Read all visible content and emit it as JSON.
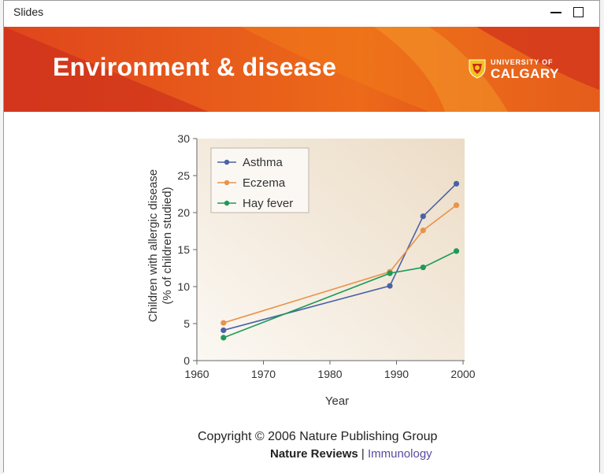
{
  "window": {
    "title": "Slides"
  },
  "slide": {
    "heading": "Environment & disease",
    "logo": {
      "top": "UNIVERSITY OF",
      "bottom": "CALGARY"
    },
    "copyright": "Copyright © 2006 Nature Publishing Group",
    "journal": {
      "name": "Nature Reviews",
      "separator": "|",
      "subtitle": "Immunology"
    }
  },
  "colors": {
    "banner": "#d9381c",
    "asthma": "#4a63a6",
    "eczema": "#e8934a",
    "hayfever": "#1e9a5a"
  },
  "chart_data": {
    "type": "line",
    "title": "",
    "xlabel": "Year",
    "ylabel": "Children with allergic disease",
    "ylabel2": "(% of children studied)",
    "xlim": [
      1960,
      2000
    ],
    "ylim": [
      0,
      30
    ],
    "xticks": [
      "1960",
      "1970",
      "1980",
      "1990",
      "2000"
    ],
    "yticks": [
      "0",
      "5",
      "10",
      "15",
      "20",
      "25",
      "30"
    ],
    "legend_position": "top-left",
    "grid": false,
    "series": [
      {
        "name": "Asthma",
        "color": "#4a63a6",
        "x": [
          1964,
          1989,
          1994,
          1999
        ],
        "y": [
          4.1,
          10.1,
          19.5,
          23.9
        ]
      },
      {
        "name": "Eczema",
        "color": "#e8934a",
        "x": [
          1964,
          1989,
          1994,
          1999
        ],
        "y": [
          5.1,
          12.0,
          17.6,
          21.0
        ]
      },
      {
        "name": "Hay fever",
        "color": "#1e9a5a",
        "x": [
          1964,
          1989,
          1994,
          1999
        ],
        "y": [
          3.1,
          11.8,
          12.6,
          14.8
        ]
      }
    ]
  }
}
